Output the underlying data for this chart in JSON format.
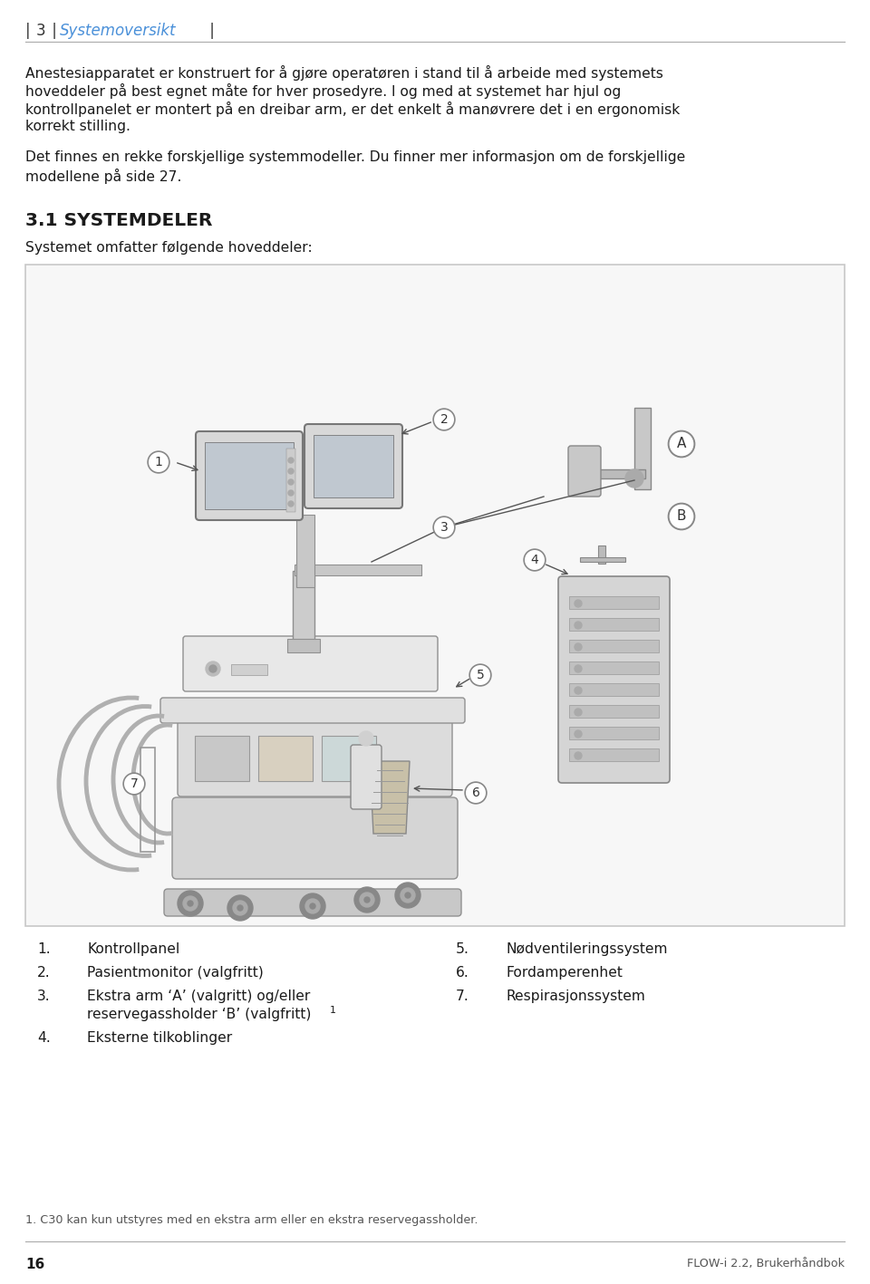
{
  "page_bg": "#ffffff",
  "header_blue": "#4a90d9",
  "text_color": "#1a1a1a",
  "header_text_1": "3",
  "header_text_2": "Systemoversikt",
  "body1_line1": "Anestesiapparatet er konstruert for å gjøre operatøren i stand til å arbeide med systemets",
  "body1_line2": "hoveddeler på best egnet måte for hver prosedyre. I og med at systemet har hjul og",
  "body1_line3": "kontrollpanelet er montert på en dreibar arm, er det enkelt å manøvrere det i en ergonomisk",
  "body1_line4": "korrekt stilling.",
  "body2_line1": "Det finnes en rekke forskjellige systemmodeller. Du finner mer informasjon om de forskjellige",
  "body2_line2": "modellene på side 27.",
  "section_title": "3.1 SYSTEMDELER",
  "section_sub": "Systemet omfatter følgende hoveddeler:",
  "list_1": "Kontrollpanel",
  "list_2": "Pasientmonitor (valgfritt)",
  "list_3a": "Ekstra arm ‘A’ (valgritt) og/eller",
  "list_3b": "reservegassholder ‘B’ (valgfritt)",
  "list_3sup": "1",
  "list_4": "Eksterne tilkoblinger",
  "list_5": "Nødventileringssystem",
  "list_6": "Fordamperenhet",
  "list_7": "Respirasjonssystem",
  "footnote": "1. C30 kan kun utstyres med en ekstra arm eller en ekstra reservegassholder.",
  "page_num": "16",
  "footer_right": "FLOW-i 2.2, Brukerhåndbok",
  "diagram_border": "#c8c8c8",
  "diagram_bg": "#f7f7f7",
  "label_circle_bg": "#ffffff",
  "label_circle_edge": "#888888",
  "arrow_color": "#555555",
  "machine_body": "#dcdcdc",
  "machine_dark": "#b0b0b0",
  "machine_light": "#e8e8e8",
  "machine_edge": "#909090"
}
